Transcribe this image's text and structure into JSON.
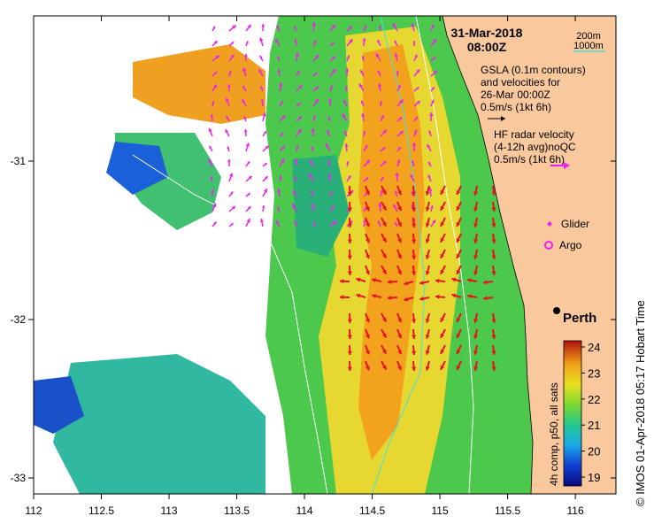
{
  "date": "31-Mar-2018",
  "time": "08:00Z",
  "legend_isobaths": [
    "200m",
    "1000m"
  ],
  "gsla_text": [
    "GSLA (0.1m contours)",
    "and velocities for",
    "26-Mar 00:00Z",
    "0.5m/s (1kt 6h)"
  ],
  "hf_text": [
    "HF radar velocity",
    "(4-12h avg)noQC",
    "0.5m/s (1kt 6h)"
  ],
  "glider_label": "Glider",
  "argo_label": "Argo",
  "city_label": "Perth",
  "colorbar": {
    "title": "4h comp, p50, all sats",
    "ticks": [
      "24",
      "23",
      "22",
      "21",
      "20",
      "19"
    ]
  },
  "credit": "© IMOS 01-Apr-2018 05:17 Hobart Time",
  "x_ticks": [
    "112",
    "112.5",
    "113",
    "113.5",
    "114",
    "114.5",
    "115",
    "115.5",
    "116"
  ],
  "y_ticks": [
    "-31",
    "-32",
    "-33"
  ],
  "colors": {
    "land": "#f9c89d",
    "sst_cold": "#0a2aa0",
    "sst_warm": "#f08a12",
    "hf_arrow": "#e8121a",
    "gsla_arrow": "#ee22ee",
    "isobath_200": "#ffffff",
    "isobath_1000": "#40e0e0"
  }
}
